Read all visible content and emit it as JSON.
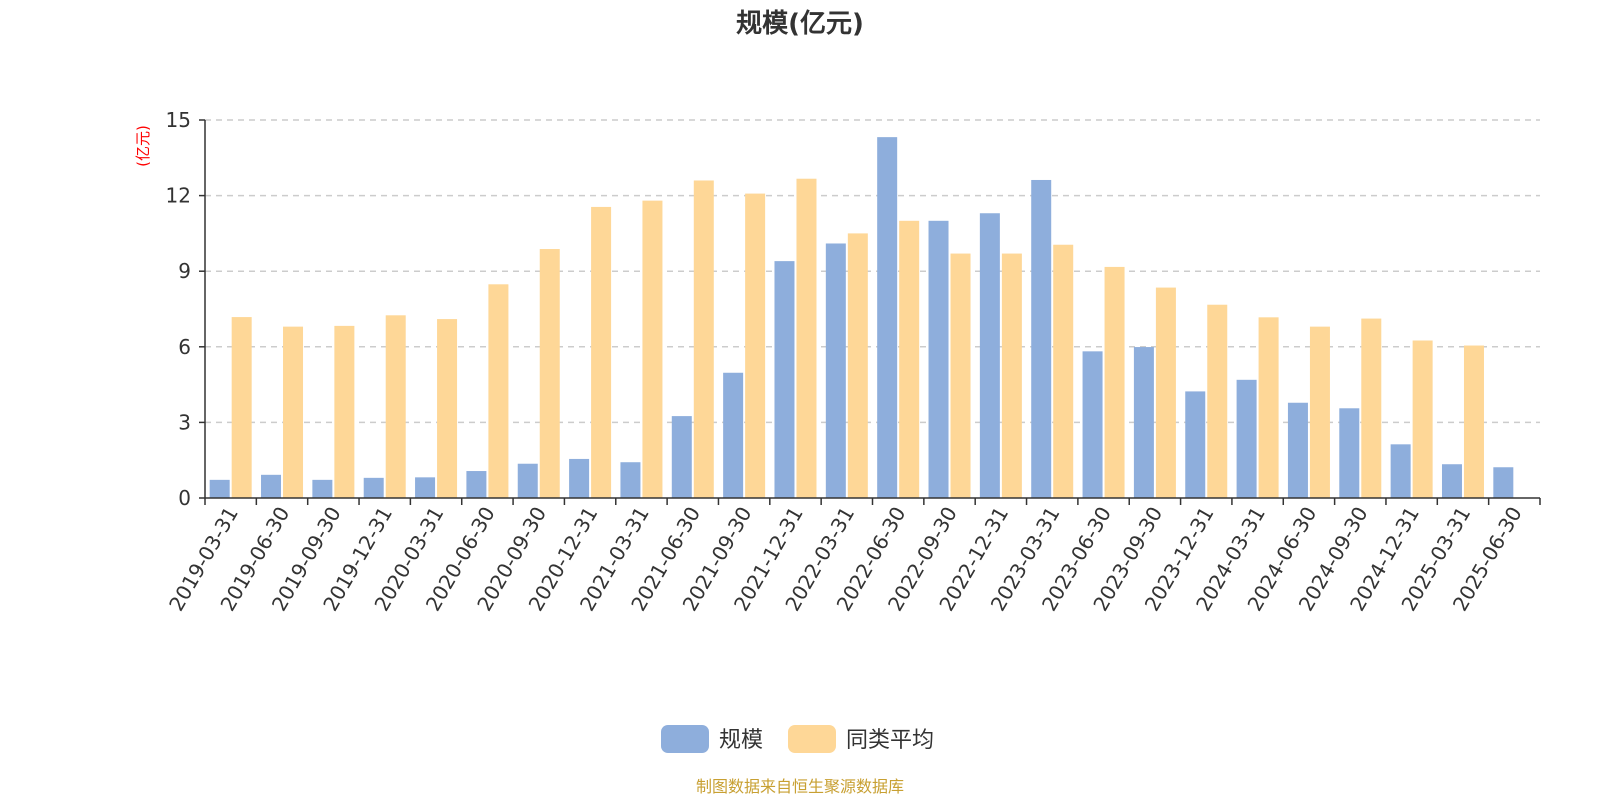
{
  "chart_data": {
    "type": "bar",
    "title": "规模(亿元)",
    "y_unit_label": "(亿元)",
    "ylim": [
      0,
      15
    ],
    "yticks": [
      0,
      3,
      6,
      9,
      12,
      15
    ],
    "grid": true,
    "legend_position": "bottom-center",
    "categories": [
      "2019-03-31",
      "2019-06-30",
      "2019-09-30",
      "2019-12-31",
      "2020-03-31",
      "2020-06-30",
      "2020-09-30",
      "2020-12-31",
      "2021-03-31",
      "2021-06-30",
      "2021-09-30",
      "2021-12-31",
      "2022-03-31",
      "2022-06-30",
      "2022-09-30",
      "2022-12-31",
      "2023-03-31",
      "2023-06-30",
      "2023-09-30",
      "2023-12-31",
      "2024-03-31",
      "2024-06-30",
      "2024-09-30",
      "2024-12-31",
      "2025-03-31",
      "2025-06-30"
    ],
    "series": [
      {
        "name": "规模",
        "color": "#8eaedc",
        "values": [
          0.72,
          0.92,
          0.72,
          0.8,
          0.82,
          1.07,
          1.36,
          1.55,
          1.42,
          3.25,
          4.97,
          9.4,
          10.1,
          14.32,
          11.0,
          11.3,
          12.62,
          5.82,
          5.99,
          4.23,
          4.69,
          3.78,
          3.56,
          2.13,
          1.34,
          1.22
        ]
      },
      {
        "name": "同类平均",
        "color": "#fed797",
        "values": [
          7.18,
          6.8,
          6.83,
          7.25,
          7.1,
          8.48,
          9.88,
          11.55,
          11.8,
          12.6,
          12.08,
          12.67,
          10.5,
          11.0,
          9.7,
          9.7,
          10.05,
          9.17,
          8.35,
          7.67,
          7.17,
          6.8,
          7.12,
          6.25,
          6.05,
          null
        ]
      }
    ],
    "source_note": "制图数据来自恒生聚源数据库"
  }
}
